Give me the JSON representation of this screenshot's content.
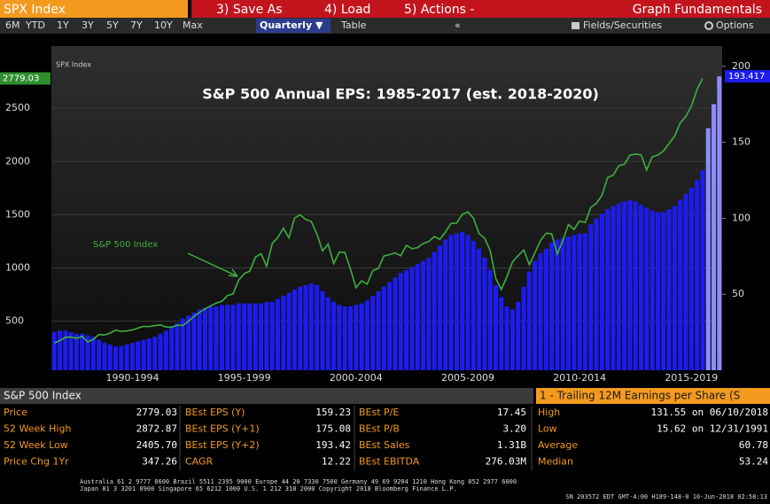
{
  "header": {
    "ticker": "SPX Index",
    "menu": [
      "3) Save As",
      "4) Load",
      "5) Actions -"
    ],
    "screen": "Graph Fundamentals"
  },
  "toolbar": {
    "periods": [
      "6M",
      "YTD",
      "1Y",
      "3Y",
      "5Y",
      "7Y",
      "10Y",
      "Max"
    ],
    "frequency": "Quarterly ▼",
    "table": "Table",
    "collapse": "«",
    "fields": "Fields/Securities",
    "options": "Options"
  },
  "chart_data": {
    "type": "combo",
    "title": "S&P 500 Annual EPS: 1985-2017 (est. 2018-2020)",
    "ylabel": "SPX Index",
    "categories": [
      null,
      null,
      null,
      null,
      null,
      null,
      null,
      null,
      null,
      null,
      null,
      null,
      null,
      null,
      "1990-1994",
      null,
      null,
      null,
      null,
      null,
      null,
      null,
      null,
      null,
      null,
      null,
      null,
      null,
      null,
      null,
      null,
      null,
      null,
      null,
      "1995-1999",
      null,
      null,
      null,
      null,
      null,
      null,
      null,
      null,
      null,
      null,
      null,
      null,
      null,
      null,
      null,
      null,
      null,
      null,
      null,
      "2000-2004",
      null,
      null,
      null,
      null,
      null,
      null,
      null,
      null,
      null,
      null,
      null,
      null,
      null,
      null,
      null,
      null,
      null,
      null,
      null,
      "2005-2009",
      null,
      null,
      null,
      null,
      null,
      null,
      null,
      null,
      null,
      null,
      null,
      null,
      null,
      null,
      null,
      null,
      null,
      null,
      null,
      "2010-2014",
      null,
      null,
      null,
      null,
      null,
      null,
      null,
      null,
      null,
      null,
      null,
      null,
      null,
      null,
      null,
      null,
      null,
      null,
      null,
      "2015-2019",
      null,
      null,
      null,
      null,
      null
    ],
    "series": [
      {
        "name": "S&P 500 Index",
        "type": "line",
        "axis": "y",
        "color": "#3fae3f",
        "values": [
          295,
          318,
          349,
          353,
          340,
          358,
          306,
          330,
          375,
          371,
          388,
          417,
          404,
          409,
          418,
          436,
          452,
          450,
          459,
          466,
          446,
          444,
          463,
          459,
          501,
          545,
          584,
          616,
          645,
          671,
          687,
          741,
          757,
          885,
          947,
          970,
          1102,
          1134,
          1017,
          1229,
          1286,
          1373,
          1283,
          1469,
          1499,
          1455,
          1437,
          1320,
          1160,
          1224,
          1041,
          1148,
          1147,
          990,
          815,
          880,
          848,
          975,
          996,
          1112,
          1126,
          1141,
          1115,
          1212,
          1181,
          1191,
          1229,
          1248,
          1295,
          1270,
          1336,
          1418,
          1421,
          1503,
          1527,
          1468,
          1323,
          1280,
          1166,
          903,
          798,
          919,
          1057,
          1115,
          1169,
          1031,
          1141,
          1258,
          1326,
          1321,
          1131,
          1258,
          1408,
          1362,
          1441,
          1426,
          1569,
          1606,
          1682,
          1848,
          1872,
          1960,
          1972,
          2059,
          2068,
          2063,
          1920,
          2044,
          2060,
          2099,
          2168,
          2239,
          2363,
          2423,
          2519,
          2674,
          2779.03,
          null,
          null,
          null
        ]
      },
      {
        "type": "bar",
        "axis": "y2",
        "color": "#1c1cf0",
        "values": [
          25,
          26,
          26,
          25,
          24,
          24,
          23,
          22,
          20,
          18,
          17,
          15.62,
          16,
          17,
          18,
          19,
          20,
          21,
          22,
          24,
          26,
          29,
          31,
          34,
          36,
          38,
          40,
          41,
          42,
          42,
          43,
          43,
          43,
          44,
          44,
          44,
          44,
          44,
          45,
          45,
          47,
          49,
          51,
          53,
          55,
          56,
          57,
          56,
          52,
          48,
          45,
          43,
          42,
          42,
          43,
          44,
          46,
          49,
          52,
          55,
          58,
          61,
          64,
          66,
          68,
          70,
          72,
          74,
          78,
          82,
          86,
          89,
          90,
          91,
          89,
          85,
          80,
          74,
          66,
          56,
          48,
          42,
          40,
          45,
          55,
          65,
          72,
          77,
          80,
          84,
          86,
          87,
          88,
          89,
          90,
          90,
          96,
          100,
          103,
          106,
          108,
          110,
          111,
          112,
          111,
          109,
          107,
          105,
          104,
          104,
          106,
          108,
          112,
          116,
          120,
          125,
          131.55,
          null,
          null,
          null
        ]
      },
      {
        "type": "bar",
        "axis": "y2",
        "color": "#8c8cff",
        "values": [
          null,
          null,
          null,
          null,
          null,
          null,
          null,
          null,
          null,
          null,
          null,
          null,
          null,
          null,
          null,
          null,
          null,
          null,
          null,
          null,
          null,
          null,
          null,
          null,
          null,
          null,
          null,
          null,
          null,
          null,
          null,
          null,
          null,
          null,
          null,
          null,
          null,
          null,
          null,
          null,
          null,
          null,
          null,
          null,
          null,
          null,
          null,
          null,
          null,
          null,
          null,
          null,
          null,
          null,
          null,
          null,
          null,
          null,
          null,
          null,
          null,
          null,
          null,
          null,
          null,
          null,
          null,
          null,
          null,
          null,
          null,
          null,
          null,
          null,
          null,
          null,
          null,
          null,
          null,
          null,
          null,
          null,
          null,
          null,
          null,
          null,
          null,
          null,
          null,
          null,
          null,
          null,
          null,
          null,
          null,
          null,
          null,
          null,
          null,
          null,
          null,
          null,
          null,
          null,
          null,
          null,
          null,
          null,
          null,
          null,
          null,
          null,
          null,
          null,
          null,
          null,
          null,
          159.23,
          175.08,
          193.417
        ]
      }
    ],
    "ylim": [
      40,
      2950
    ],
    "yticks": [
      500,
      1000,
      1500,
      2000,
      2500
    ],
    "y2lim": [
      0,
      204
    ],
    "y2ticks": [
      50,
      100,
      150,
      200
    ],
    "grid": true
  },
  "stats": {
    "title": "S&P 500 Index",
    "metric": "1 - Trailing 12M Earnings per Share (S",
    "rows": [
      [
        "Price",
        "2779.03",
        "BEst EPS (Y)",
        "159.23",
        "BEst P/E",
        "17.45",
        "High",
        "131.55 on 06/10/2018"
      ],
      [
        "52 Week High",
        "2872.87",
        "BEst EPS (Y+1)",
        "175.08",
        "BEst P/B",
        "3.20",
        "Low",
        "15.62 on 12/31/1991"
      ],
      [
        "52 Week Low",
        "2405.70",
        "BEst EPS (Y+2)",
        "193.42",
        "BEst Sales",
        "1.31B",
        "Average",
        "60.78"
      ],
      [
        "Price Chg 1Yr",
        "347.26",
        "CAGR",
        "12.22",
        "BEst EBITDA",
        "276.03M",
        "Median",
        "53.24"
      ]
    ]
  },
  "footer": [
    "Australia 61 2 9777 8600 Brazil 5511 2395 9000 Europe 44 20 7330 7500 Germany 49 69 9204 1210 Hong Kong 852 2977 6000",
    "Japan 81 3 3201 8900        Singapore 65 6212 1000        U.S. 1 212 318 2000              Copyright 2018 Bloomberg Finance L.P.",
    "SN 203572 EDT  GMT-4:00 H189-148-0 10-Jun-2018 02:58:13"
  ]
}
